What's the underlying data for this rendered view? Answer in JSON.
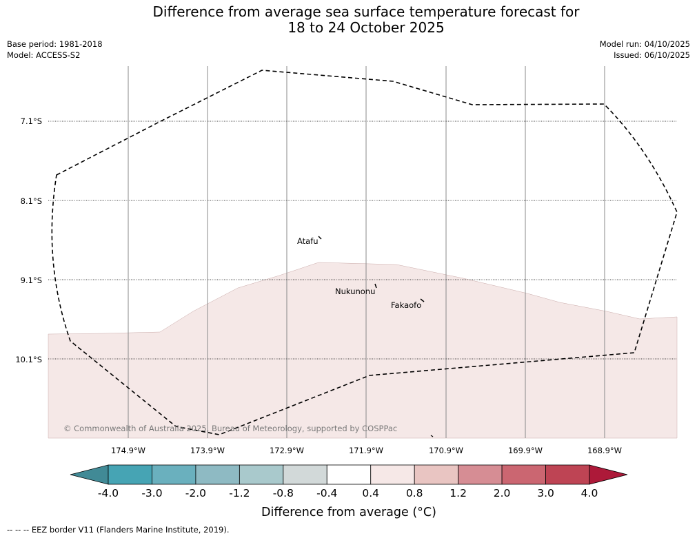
{
  "title": {
    "line1": "Difference from average sea surface temperature forecast for",
    "line2": "18 to 24 October 2025"
  },
  "meta": {
    "base_period": "Base period: 1981-2018",
    "model": "Model: ACCESS-S2",
    "model_run": "Model run: 04/10/2025",
    "issued": "Issued: 06/10/2025"
  },
  "map": {
    "lat_labels": [
      "7.1°S",
      "8.1°S",
      "9.1°S",
      "10.1°S"
    ],
    "lon_labels": [
      "174.9°W",
      "173.9°W",
      "172.9°W",
      "171.9°W",
      "170.9°W",
      "169.9°W",
      "168.9°W"
    ],
    "places": [
      "Atafu",
      "Nukunonu",
      "Fakaofo"
    ],
    "copyright": "© Commonwealth of Australia 2025, Bureau of Meteorology, supported by COSPPac"
  },
  "legend": {
    "title": "Difference from average (°C)",
    "tick_labels": [
      "-4.0",
      "-3.0",
      "-2.0",
      "-1.2",
      "-0.8",
      "-0.4",
      "0.4",
      "0.8",
      "1.2",
      "2.0",
      "3.0",
      "4.0"
    ],
    "colors": [
      "#418a96",
      "#46a4b4",
      "#6ab0be",
      "#8ebac3",
      "#a9c9cc",
      "#d2d9d9",
      "#ffffff",
      "#f6e8e7",
      "#e9c5c2",
      "#d68d94",
      "#cb6671",
      "#be4454",
      "#ad1939"
    ]
  },
  "fill_color": "#f5e8e7",
  "footer": {
    "eez_note": "--  --  -- EEZ border V11 (Flanders Marine Institute, 2019)."
  }
}
